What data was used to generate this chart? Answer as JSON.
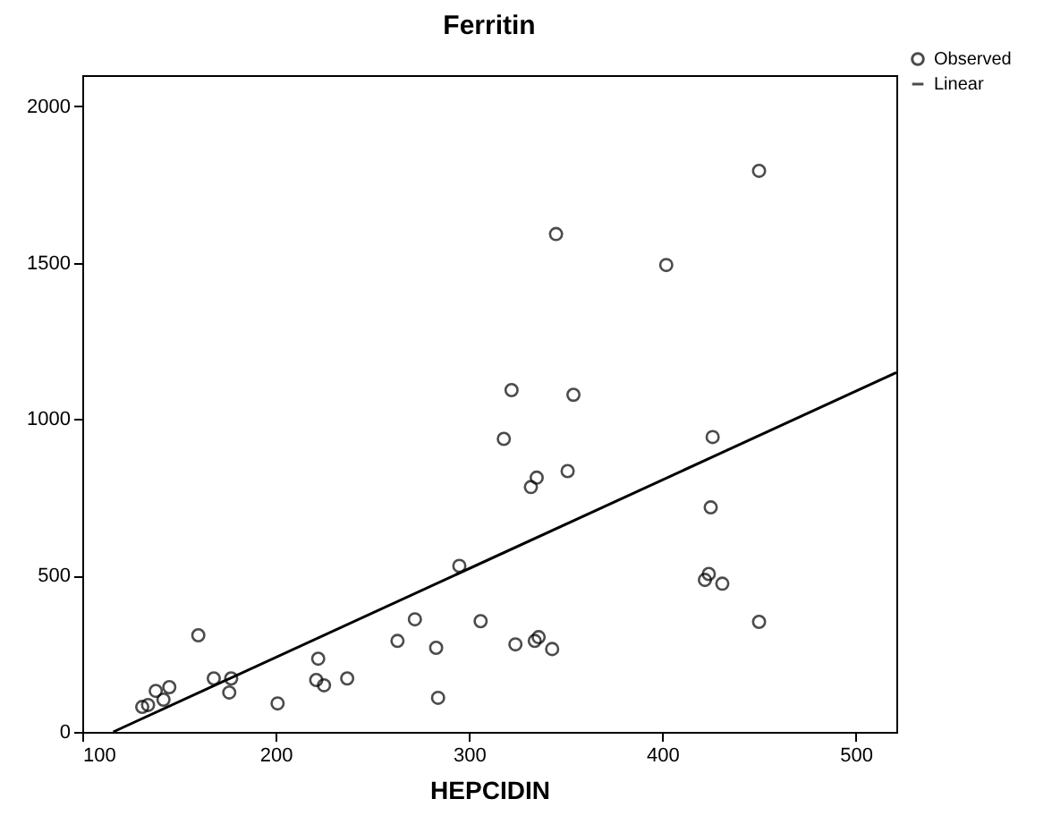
{
  "chart_data": {
    "type": "scatter",
    "title": "Ferritin",
    "xlabel": "HEPCIDIN",
    "xlim": [
      100,
      521
    ],
    "xticks": [
      100,
      200,
      300,
      400,
      500
    ],
    "ylim": [
      0,
      2100
    ],
    "yticks": [
      0,
      500,
      1000,
      1500,
      2000
    ],
    "grid": false,
    "legend": "top right",
    "series": [
      {
        "name": "Observed",
        "marker": "circle",
        "color": "#000000",
        "x": [
          131,
          134,
          138,
          142,
          145,
          160,
          168,
          177,
          176,
          201,
          222,
          221,
          225,
          237,
          263,
          272,
          283,
          284,
          295,
          306,
          324,
          450,
          345,
          402,
          322,
          354,
          318,
          426,
          335,
          332,
          351,
          425,
          336,
          334,
          343,
          424,
          422,
          431,
          450
        ],
        "values": [
          80,
          86,
          131,
          103,
          143,
          309,
          171,
          171,
          126,
          91,
          234,
          166,
          149,
          171,
          291,
          360,
          269,
          109,
          531,
          354,
          280,
          1794,
          1592,
          1493,
          1093,
          1078,
          937,
          943,
          813,
          783,
          834,
          718,
          303,
          291,
          265,
          505,
          486,
          474,
          352
        ]
      },
      {
        "name": "Linear",
        "type": "line",
        "color": "#000000",
        "line_style": "solid",
        "x": [
          116,
          521
        ],
        "values": [
          0,
          1149
        ]
      }
    ]
  }
}
